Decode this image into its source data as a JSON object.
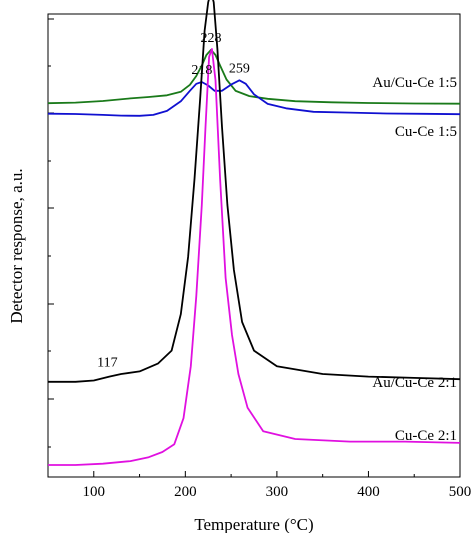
{
  "chart_data": {
    "type": "line",
    "xlabel": "Temperature (°C)",
    "ylabel": "Detector response, a.u.",
    "xlim": [
      50,
      500
    ],
    "x_ticks": [
      100,
      200,
      300,
      400,
      500
    ],
    "x_tick_labels": [
      "100",
      "200",
      "300",
      "400",
      "500"
    ],
    "y_ticks_labeled": false,
    "grid": false,
    "series": [
      {
        "name": "Au/Cu-Ce 1:5",
        "color": "#1a7a1a",
        "x": [
          50,
          80,
          110,
          140,
          160,
          180,
          195,
          205,
          212,
          218,
          223,
          228,
          233,
          238,
          245,
          255,
          270,
          290,
          320,
          360,
          400,
          450,
          500
        ],
        "y": [
          0.45,
          0.8,
          1.7,
          3.2,
          4.0,
          5.0,
          7.0,
          11.0,
          16.0,
          22.0,
          28.0,
          31.0,
          28.0,
          22.0,
          14.0,
          7.5,
          4.5,
          3.0,
          1.6,
          1.0,
          0.6,
          0.3,
          0.2
        ]
      },
      {
        "name": "Cu-Ce 1:5",
        "color": "#1010d0",
        "x": [
          50,
          80,
          110,
          130,
          150,
          165,
          180,
          195,
          205,
          212,
          218,
          225,
          232,
          240,
          250,
          259,
          266,
          275,
          290,
          310,
          340,
          380,
          420,
          460,
          500
        ],
        "y": [
          -6.1,
          -6.3,
          -6.8,
          -7.2,
          -7.3,
          -6.8,
          -4.5,
          1.0,
          7.0,
          11.0,
          12.0,
          10.0,
          7.0,
          7.0,
          10.5,
          13.0,
          11.0,
          5.0,
          -0.5,
          -3.0,
          -5.0,
          -5.5,
          -6.0,
          -6.2,
          -6.4
        ]
      },
      {
        "name": "Au/Cu-Ce 2:1",
        "color": "#000000",
        "x": [
          50,
          80,
          100,
          117,
          130,
          150,
          170,
          185,
          195,
          203,
          210,
          216,
          221,
          225,
          228,
          231,
          235,
          240,
          246,
          253,
          262,
          275,
          300,
          350,
          400,
          450,
          500
        ],
        "y": [
          -88,
          -88,
          -87.5,
          -86,
          -85,
          -84,
          -81,
          -76,
          -62,
          -40,
          -10,
          20,
          47,
          58,
          62,
          58,
          40,
          10,
          -20,
          -45,
          -65,
          -76,
          -82,
          -85,
          -86,
          -86.5,
          -87
        ]
      },
      {
        "name": "Cu-Ce 2:1",
        "color": "#e010e0",
        "x": [
          50,
          80,
          110,
          140,
          160,
          175,
          188,
          198,
          206,
          212,
          218,
          222,
          226,
          229,
          233,
          238,
          244,
          251,
          258,
          268,
          285,
          320,
          380,
          440,
          500
        ],
        "y": [
          -120,
          -120,
          -119.5,
          -118.5,
          -117,
          -115,
          -112,
          -102,
          -82,
          -55,
          -20,
          10,
          37,
          40,
          28,
          -10,
          -48,
          -70,
          -85,
          -98,
          -107,
          -110,
          -111,
          -111,
          -111.5
        ]
      }
    ],
    "annotations": [
      {
        "text": "228",
        "x": 228,
        "y": 31,
        "series": "Au/Cu-Ce 1:5"
      },
      {
        "text": "218",
        "x": 218,
        "y": 12,
        "series": "Cu-Ce 1:5"
      },
      {
        "text": "259",
        "x": 259,
        "y": 13,
        "series": "Cu-Ce 1:5"
      },
      {
        "text": "228",
        "x": 228,
        "y": 62,
        "series": "Au/Cu-Ce 2:1"
      },
      {
        "text": "117",
        "x": 117,
        "y": -86,
        "series": "Au/Cu-Ce 2:1"
      }
    ]
  }
}
